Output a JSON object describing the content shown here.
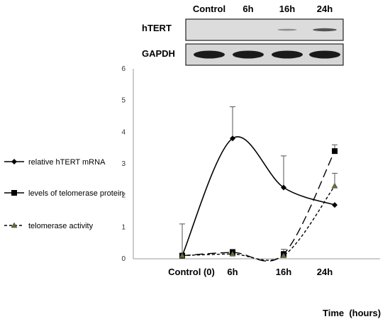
{
  "blot": {
    "lanes": [
      "Control",
      "6h",
      "16h",
      "24h"
    ],
    "rows": [
      {
        "label": "hTERT",
        "band_intensity": [
          0.0,
          0.0,
          0.2,
          0.6
        ]
      },
      {
        "label": "GAPDH",
        "band_intensity": [
          1.0,
          1.0,
          1.0,
          1.0
        ]
      }
    ],
    "colors": {
      "band": "#1a1a1a",
      "membrane": "#dcdcdc",
      "border": "#222222"
    }
  },
  "chart_data": {
    "type": "line",
    "categories": [
      "Control (0)",
      "6h",
      "16h",
      "24h"
    ],
    "x_title": "Time  (hours)",
    "ylim": [
      0,
      6
    ],
    "y_ticks": [
      "0",
      "1",
      "2",
      "3",
      "4",
      "5",
      "6"
    ],
    "grid": false,
    "legend_position": "left",
    "series": [
      {
        "name": "relative hTERT mRNA",
        "marker": "diamond",
        "line": "solid",
        "values": [
          0.1,
          3.8,
          2.25,
          1.7
        ],
        "error": [
          1.0,
          1.0,
          1.0,
          0
        ]
      },
      {
        "name": "levels of telomerase protein",
        "marker": "square",
        "line": "long-dash",
        "values": [
          0.1,
          0.2,
          0.15,
          3.4
        ],
        "error": [
          0,
          0.1,
          0.15,
          0.2
        ]
      },
      {
        "name": "telomerase activity",
        "marker": "triangle",
        "line": "short-dash",
        "values": [
          0.1,
          0.15,
          0.1,
          2.3
        ],
        "error": [
          0,
          0.1,
          0.1,
          0.4
        ]
      }
    ],
    "colors": {
      "line": "#000000",
      "triangle_fill": "#6b6b3a",
      "axis": "#9a9a9a"
    }
  }
}
